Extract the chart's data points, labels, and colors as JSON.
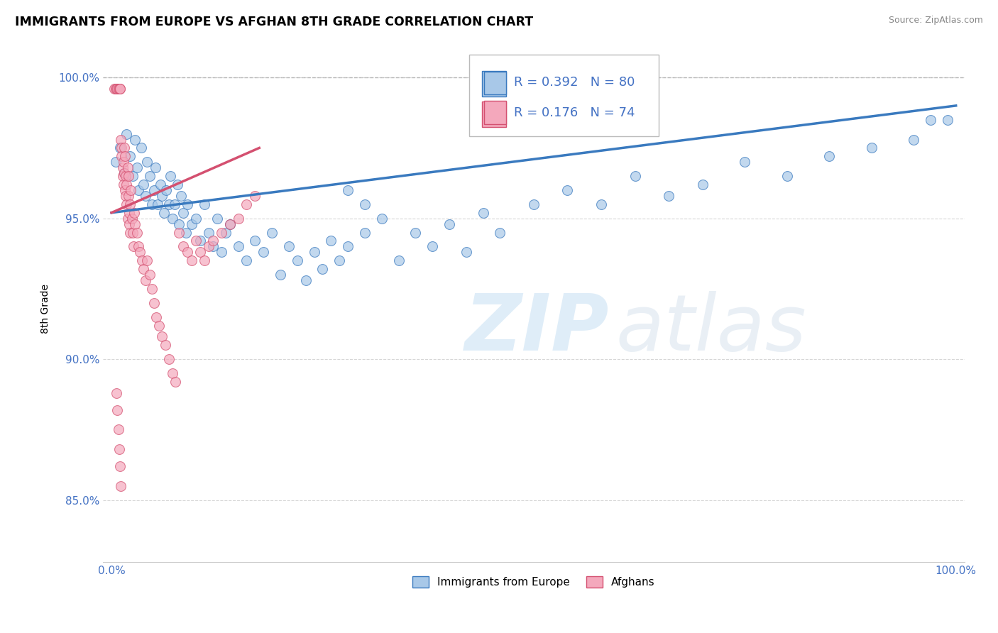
{
  "title": "IMMIGRANTS FROM EUROPE VS AFGHAN 8TH GRADE CORRELATION CHART",
  "source": "Source: ZipAtlas.com",
  "xlabel": "",
  "ylabel": "8th Grade",
  "xlim": [
    -0.01,
    1.01
  ],
  "ylim": [
    0.828,
    1.008
  ],
  "yticks": [
    0.85,
    0.9,
    0.95,
    1.0
  ],
  "ytick_labels": [
    "85.0%",
    "90.0%",
    "95.0%",
    "100.0%"
  ],
  "xticks": [
    0.0,
    1.0
  ],
  "xtick_labels": [
    "0.0%",
    "100.0%"
  ],
  "blue_R": 0.392,
  "blue_N": 80,
  "pink_R": 0.176,
  "pink_N": 74,
  "blue_color": "#A8C8E8",
  "pink_color": "#F4A8BC",
  "trend_blue": "#3A7ABF",
  "trend_pink": "#D45070",
  "legend_blue_label": "Immigrants from Europe",
  "legend_pink_label": "Afghans",
  "dashed_line_y": 1.0,
  "blue_scatter_x": [
    0.005,
    0.01,
    0.015,
    0.018,
    0.022,
    0.025,
    0.028,
    0.03,
    0.032,
    0.035,
    0.038,
    0.04,
    0.042,
    0.045,
    0.048,
    0.05,
    0.052,
    0.055,
    0.058,
    0.06,
    0.062,
    0.065,
    0.068,
    0.07,
    0.072,
    0.075,
    0.078,
    0.08,
    0.082,
    0.085,
    0.088,
    0.09,
    0.095,
    0.1,
    0.105,
    0.11,
    0.115,
    0.12,
    0.125,
    0.13,
    0.135,
    0.14,
    0.15,
    0.16,
    0.17,
    0.18,
    0.19,
    0.2,
    0.21,
    0.22,
    0.23,
    0.24,
    0.25,
    0.26,
    0.27,
    0.28,
    0.3,
    0.32,
    0.34,
    0.36,
    0.38,
    0.4,
    0.42,
    0.44,
    0.46,
    0.5,
    0.54,
    0.58,
    0.62,
    0.66,
    0.7,
    0.75,
    0.8,
    0.85,
    0.9,
    0.95,
    0.28,
    0.3,
    0.97,
    0.99
  ],
  "blue_scatter_y": [
    0.97,
    0.975,
    0.966,
    0.98,
    0.972,
    0.965,
    0.978,
    0.968,
    0.96,
    0.975,
    0.962,
    0.958,
    0.97,
    0.965,
    0.955,
    0.96,
    0.968,
    0.955,
    0.962,
    0.958,
    0.952,
    0.96,
    0.955,
    0.965,
    0.95,
    0.955,
    0.962,
    0.948,
    0.958,
    0.952,
    0.945,
    0.955,
    0.948,
    0.95,
    0.942,
    0.955,
    0.945,
    0.94,
    0.95,
    0.938,
    0.945,
    0.948,
    0.94,
    0.935,
    0.942,
    0.938,
    0.945,
    0.93,
    0.94,
    0.935,
    0.928,
    0.938,
    0.932,
    0.942,
    0.935,
    0.94,
    0.945,
    0.95,
    0.935,
    0.945,
    0.94,
    0.948,
    0.938,
    0.952,
    0.945,
    0.955,
    0.96,
    0.955,
    0.965,
    0.958,
    0.962,
    0.97,
    0.965,
    0.972,
    0.975,
    0.978,
    0.96,
    0.955,
    0.985,
    0.985
  ],
  "pink_scatter_x": [
    0.003,
    0.005,
    0.006,
    0.007,
    0.008,
    0.009,
    0.01,
    0.01,
    0.011,
    0.012,
    0.012,
    0.013,
    0.013,
    0.014,
    0.014,
    0.015,
    0.015,
    0.016,
    0.016,
    0.017,
    0.017,
    0.018,
    0.018,
    0.019,
    0.019,
    0.02,
    0.02,
    0.021,
    0.021,
    0.022,
    0.022,
    0.023,
    0.024,
    0.025,
    0.026,
    0.027,
    0.028,
    0.03,
    0.032,
    0.034,
    0.036,
    0.038,
    0.04,
    0.042,
    0.045,
    0.048,
    0.05,
    0.053,
    0.056,
    0.06,
    0.064,
    0.068,
    0.072,
    0.076,
    0.08,
    0.085,
    0.09,
    0.095,
    0.1,
    0.105,
    0.11,
    0.115,
    0.12,
    0.13,
    0.14,
    0.15,
    0.16,
    0.17,
    0.006,
    0.007,
    0.008,
    0.009,
    0.01,
    0.011
  ],
  "pink_scatter_y": [
    0.996,
    0.996,
    0.996,
    0.996,
    0.996,
    0.996,
    0.996,
    0.996,
    0.978,
    0.975,
    0.972,
    0.968,
    0.965,
    0.97,
    0.962,
    0.975,
    0.966,
    0.96,
    0.972,
    0.965,
    0.958,
    0.962,
    0.955,
    0.968,
    0.95,
    0.958,
    0.965,
    0.952,
    0.948,
    0.955,
    0.945,
    0.96,
    0.95,
    0.945,
    0.94,
    0.952,
    0.948,
    0.945,
    0.94,
    0.938,
    0.935,
    0.932,
    0.928,
    0.935,
    0.93,
    0.925,
    0.92,
    0.915,
    0.912,
    0.908,
    0.905,
    0.9,
    0.895,
    0.892,
    0.945,
    0.94,
    0.938,
    0.935,
    0.942,
    0.938,
    0.935,
    0.94,
    0.942,
    0.945,
    0.948,
    0.95,
    0.955,
    0.958,
    0.888,
    0.882,
    0.875,
    0.868,
    0.862,
    0.855
  ]
}
